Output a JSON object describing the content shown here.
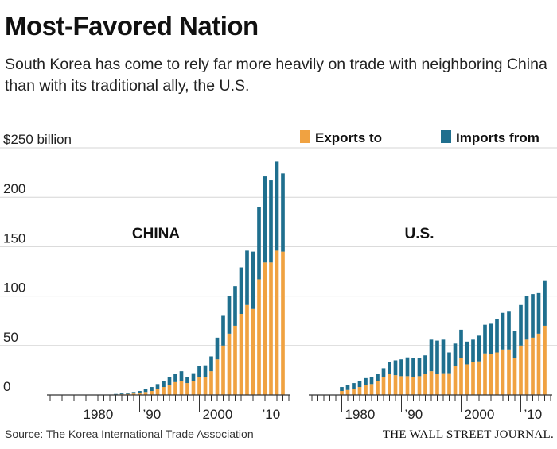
{
  "header": {
    "title": "Most-Favored Nation",
    "subtitle": "South Korea has come to rely far more heavily on trade with neighboring China than with its traditional ally, the U.S."
  },
  "footer": {
    "source": "Source: The Korea International Trade Association",
    "credit": "THE WALL STREET JOURNAL."
  },
  "colors": {
    "exports": "#f0a241",
    "imports": "#1f6f8e",
    "grid": "#d6d6d6",
    "axis": "#333333"
  },
  "chart_data": [
    {
      "type": "bar",
      "stacked": true,
      "panel_label": "CHINA",
      "ylabel": "$250 billion",
      "ylim": [
        0,
        250
      ],
      "yticks": [
        0,
        50,
        100,
        150,
        200,
        250
      ],
      "ytick_labels": [
        "0",
        "50",
        "100",
        "150",
        "200",
        "$250 billion"
      ],
      "xlim": [
        1975,
        2015
      ],
      "xticks_major": [
        1980,
        1990,
        2000,
        2010
      ],
      "xtick_labels": [
        "1980",
        "’90",
        "2000",
        "’10"
      ],
      "legend": [
        "Exports to",
        "Imports from"
      ],
      "legend_position": "top-right",
      "x": [
        1980,
        1981,
        1982,
        1983,
        1984,
        1985,
        1986,
        1987,
        1988,
        1989,
        1990,
        1991,
        1992,
        1993,
        1994,
        1995,
        1996,
        1997,
        1998,
        1999,
        2000,
        2001,
        2002,
        2003,
        2004,
        2005,
        2006,
        2007,
        2008,
        2009,
        2010,
        2011,
        2012,
        2013,
        2014
      ],
      "series": [
        {
          "name": "Exports to",
          "values": [
            0,
            0,
            0,
            0,
            0,
            0,
            0.5,
            0.7,
            1,
            1.5,
            2,
            3,
            4,
            6,
            8,
            10,
            13,
            14,
            12,
            14,
            18,
            18,
            24,
            36,
            50,
            62,
            70,
            82,
            91,
            87,
            117,
            134,
            134,
            146,
            145
          ]
        },
        {
          "name": "Imports from",
          "values": [
            0,
            0,
            0,
            0,
            0,
            0,
            0.5,
            0.8,
            1,
            1.5,
            2,
            3,
            4,
            5,
            6,
            8,
            8,
            10,
            6,
            8,
            11,
            12,
            15,
            22,
            30,
            38,
            40,
            47,
            55,
            58,
            73,
            87,
            83,
            90,
            79
          ]
        }
      ],
      "totals": [
        0,
        0,
        0,
        0,
        0,
        0,
        1,
        1.5,
        2,
        3,
        4,
        6,
        8,
        11,
        14,
        18,
        21,
        24,
        18,
        22,
        29,
        30,
        39,
        58,
        80,
        100,
        110,
        129,
        146,
        145,
        190,
        221,
        217,
        236,
        224
      ]
    },
    {
      "type": "bar",
      "stacked": true,
      "panel_label": "U.S.",
      "ylim": [
        0,
        250
      ],
      "yticks": [
        0,
        50,
        100,
        150,
        200,
        250
      ],
      "xlim": [
        1975,
        2015
      ],
      "xticks_major": [
        1980,
        1990,
        2000,
        2010
      ],
      "xtick_labels": [
        "1980",
        "’90",
        "2000",
        "’10"
      ],
      "legend": [
        "Exports to",
        "Imports from"
      ],
      "x": [
        1980,
        1981,
        1982,
        1983,
        1984,
        1985,
        1986,
        1987,
        1988,
        1989,
        1990,
        1991,
        1992,
        1993,
        1994,
        1995,
        1996,
        1997,
        1998,
        1999,
        2000,
        2001,
        2002,
        2003,
        2004,
        2005,
        2006,
        2007,
        2008,
        2009,
        2010,
        2011,
        2012,
        2013,
        2014
      ],
      "series": [
        {
          "name": "Exports to",
          "values": [
            4,
            5,
            6,
            8,
            10,
            11,
            14,
            18,
            21,
            20,
            19,
            19,
            18,
            19,
            21,
            24,
            21,
            22,
            22,
            29,
            37,
            31,
            33,
            34,
            42,
            41,
            43,
            46,
            46,
            37,
            50,
            56,
            58,
            62,
            70
          ]
        },
        {
          "name": "Imports from",
          "values": [
            4,
            5,
            6,
            6,
            7,
            7,
            7,
            9,
            12,
            15,
            17,
            19,
            19,
            18,
            19,
            32,
            34,
            34,
            21,
            23,
            29,
            23,
            23,
            26,
            29,
            31,
            34,
            37,
            39,
            28,
            41,
            44,
            44,
            41,
            46
          ]
        }
      ],
      "totals": [
        8,
        10,
        12,
        14,
        17,
        18,
        21,
        27,
        33,
        35,
        36,
        38,
        37,
        37,
        40,
        56,
        55,
        56,
        43,
        52,
        66,
        54,
        56,
        60,
        71,
        72,
        77,
        83,
        85,
        65,
        91,
        100,
        102,
        103,
        116
      ]
    }
  ]
}
